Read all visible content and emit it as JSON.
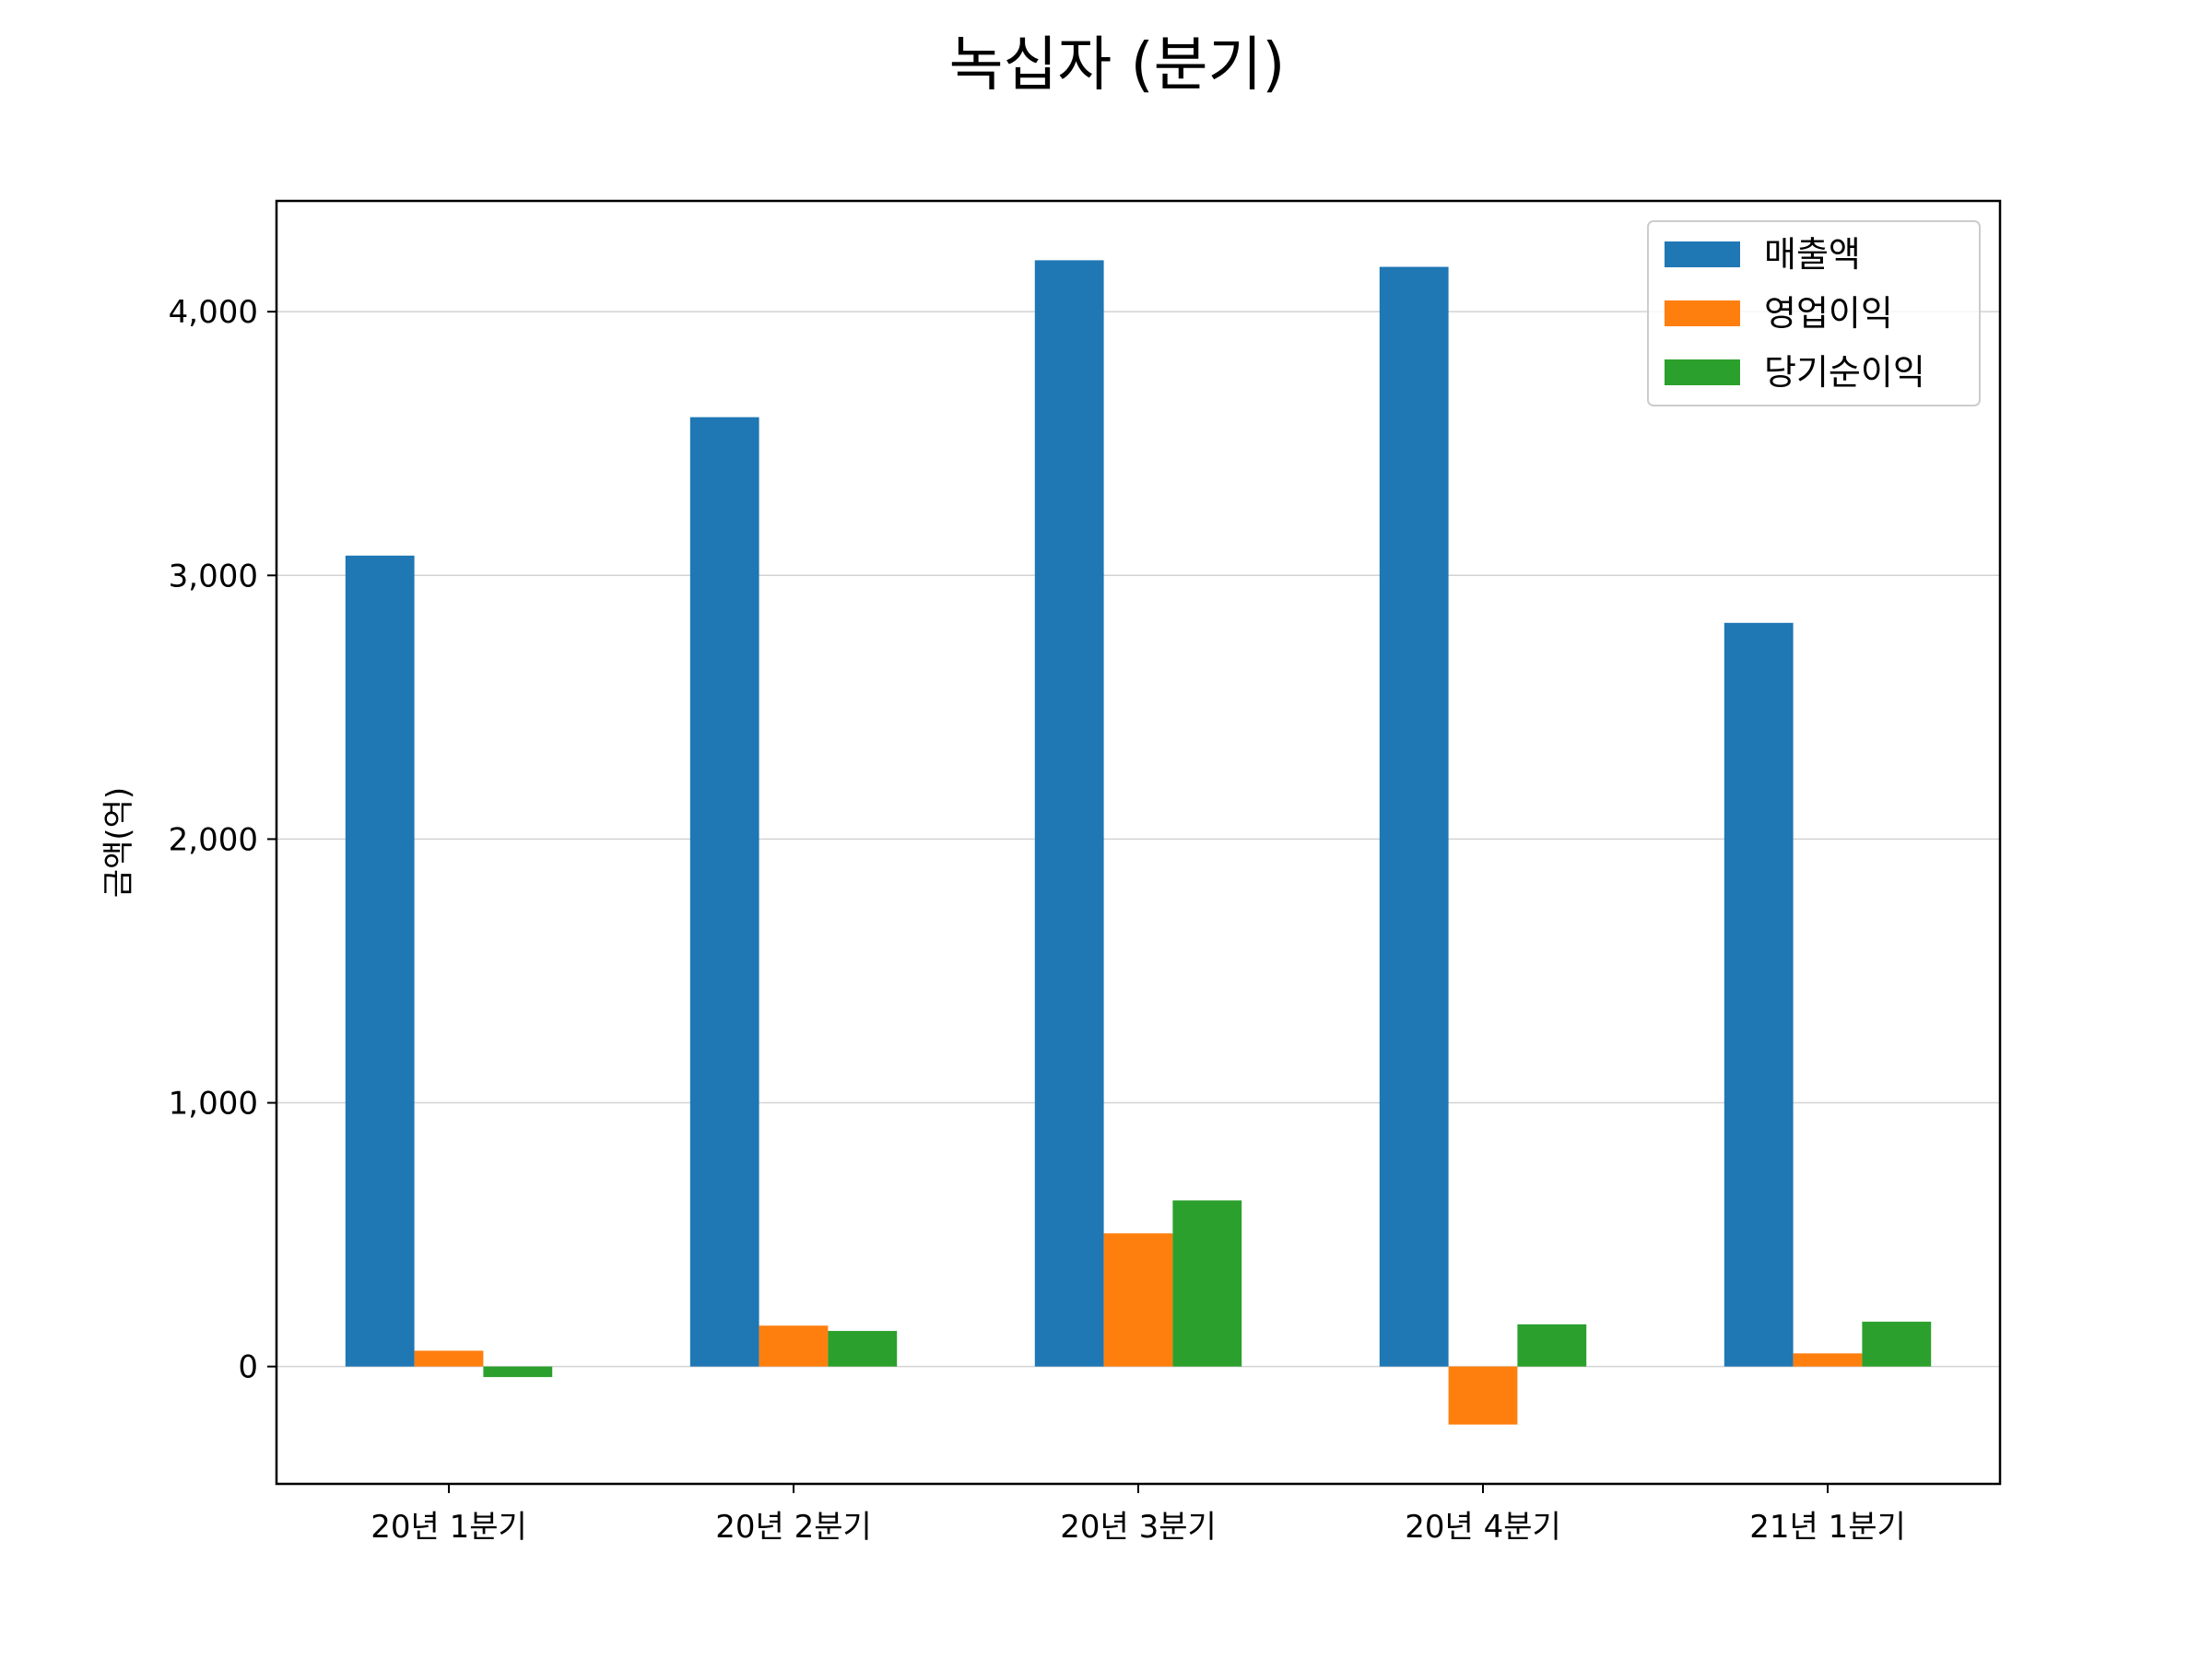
{
  "chart_data": {
    "type": "bar",
    "title": "녹십자 (분기)",
    "xlabel": "",
    "ylabel": "금액(억)",
    "categories": [
      "20년 1분기",
      "20년 2분기",
      "20년 3분기",
      "20년 4분기",
      "21년 1분기"
    ],
    "series": [
      {
        "name": "매출액",
        "color": "#1f77b4",
        "values": [
          3075,
          3600,
          4195,
          4170,
          2820
        ]
      },
      {
        "name": "영업이익",
        "color": "#ff7f0e",
        "values": [
          60,
          155,
          505,
          -220,
          50
        ]
      },
      {
        "name": "당기순이익",
        "color": "#2ca02c",
        "values": [
          -40,
          135,
          630,
          160,
          170
        ]
      }
    ],
    "ylim": [
      -445,
      4420
    ],
    "yticks": [
      0,
      1000,
      2000,
      3000,
      4000
    ],
    "ytick_labels": [
      "0",
      "1,000",
      "2,000",
      "3,000",
      "4,000"
    ],
    "grid": "y",
    "legend_position": "top-right"
  }
}
